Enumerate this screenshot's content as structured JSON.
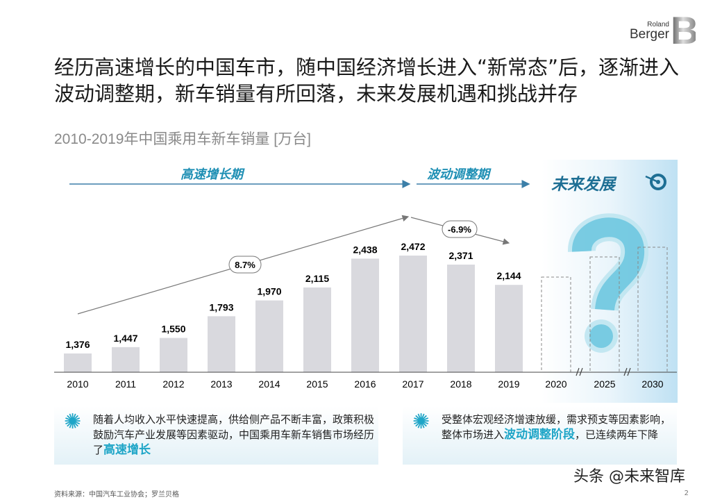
{
  "logo": {
    "line1": "Roland",
    "line2": "Berger",
    "mark": "B"
  },
  "title": "经历高速增长的中国车市，随中国经济增长进入“新常态”后，逐渐进入波动调整期，新车销量有所回落，未来发展机遇和挑战并存",
  "subtitle": "2010-2019年中国乘用车新车销量 [万台]",
  "phases": {
    "growth": "高速增长期",
    "adjust": "波动调整期",
    "future": "未来发展"
  },
  "annotations": {
    "cagr": "8.7%",
    "decline": "-6.9%"
  },
  "icons": {
    "future": "target-icon",
    "boxes": "lightbulb-gear-icon",
    "question": "question-mark"
  },
  "colors": {
    "bar": "#d9d9de",
    "accent": "#1ea5c7",
    "phase": "#1e8fb4",
    "arrow": "#3c7fa8"
  },
  "chart_data": {
    "type": "bar",
    "title": "2010-2019年中国乘用车新车销量 [万台]",
    "categories": [
      "2010",
      "2011",
      "2012",
      "2013",
      "2014",
      "2015",
      "2016",
      "2017",
      "2018",
      "2019",
      "2020",
      "2025",
      "2030"
    ],
    "values": [
      1376,
      1447,
      1550,
      1793,
      1970,
      2115,
      2438,
      2472,
      2371,
      2144,
      null,
      null,
      null
    ],
    "labels": [
      "1,376",
      "1,447",
      "1,550",
      "1,793",
      "1,970",
      "2,115",
      "2,438",
      "2,472",
      "2,371",
      "2,144"
    ],
    "forecast_categories": [
      "2020",
      "2025",
      "2030"
    ],
    "axis_breaks": [
      "2020-2025",
      "2025-2030"
    ],
    "grid": false
  },
  "boxes": [
    {
      "text": "随着人均收入水平快速提高，供给侧产品不断丰富，政策积极鼓励汽车产业发展等因素驱动，中国乘用车新车销售市场经历了",
      "highlight": "高速增长",
      "tail": ""
    },
    {
      "text": "受整体宏观经济增速放缓，需求预支等因素影响，整体市场进入",
      "highlight": "波动调整阶段",
      "tail": "，已连续两年下降"
    }
  ],
  "source": "资料来源：中国汽车工业协会；罗兰贝格",
  "page": "2",
  "watermark": "头条 @未来智库"
}
